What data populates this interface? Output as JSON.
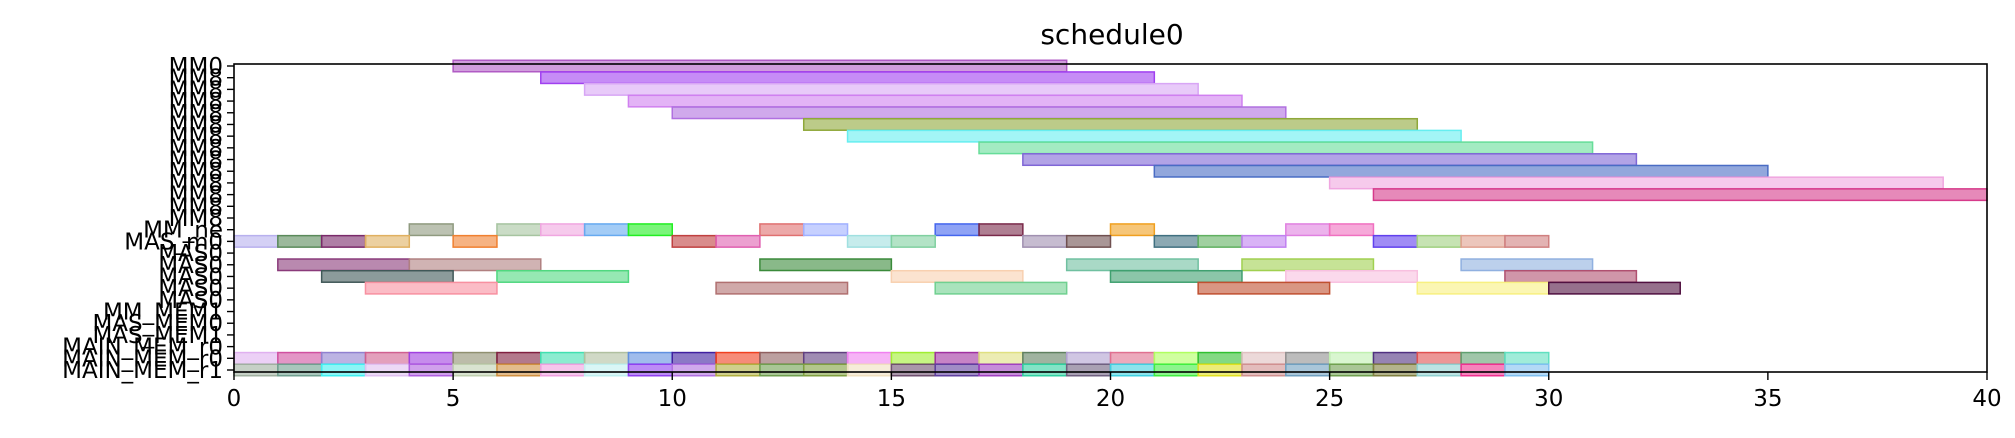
{
  "chart_data": {
    "type": "gantt",
    "title": "schedule0",
    "xlabel": "",
    "ylabel": "",
    "xlim": [
      0,
      40
    ],
    "x_ticks": [
      "0",
      "5",
      "10",
      "15",
      "20",
      "25",
      "30",
      "35",
      "40"
    ],
    "y_labels": [
      "MM0",
      "MM8",
      "MM8",
      "MM8",
      "MM8",
      "MM8",
      "MM8",
      "MM8",
      "MM8",
      "MM8",
      "MM8",
      "MM8",
      "MM8",
      "MM8",
      "MM_ne",
      "MAS_m0",
      "MAS0",
      "MAS0",
      "MAS0",
      "MAS0",
      "MAS0",
      "MM_MEM1",
      "MAS_MEM0",
      "MAS_MEM1",
      "MAIN_MEM_r0",
      "MAIN_MEM_r0",
      "MAIN_MEM_r1"
    ],
    "rows": [
      {
        "label": "MM0",
        "tasks": [
          {
            "start": 5,
            "end": 19,
            "color": "#b05bc4"
          }
        ]
      },
      {
        "label": "MM8",
        "tasks": [
          {
            "start": 7,
            "end": 21,
            "color": "#a040f0"
          }
        ]
      },
      {
        "label": "MM8",
        "tasks": [
          {
            "start": 8,
            "end": 22,
            "color": "#d8a6f5"
          }
        ]
      },
      {
        "label": "MM8",
        "tasks": [
          {
            "start": 9,
            "end": 23,
            "color": "#d080f0"
          }
        ]
      },
      {
        "label": "MM8",
        "tasks": [
          {
            "start": 10,
            "end": 24,
            "color": "#b070e0"
          }
        ]
      },
      {
        "label": "MM8",
        "tasks": [
          {
            "start": 13,
            "end": 27,
            "color": "#8fa83a"
          }
        ]
      },
      {
        "label": "MM8",
        "tasks": [
          {
            "start": 14,
            "end": 28,
            "color": "#66eef0"
          }
        ]
      },
      {
        "label": "MM8",
        "tasks": [
          {
            "start": 17,
            "end": 31,
            "color": "#66dd99"
          }
        ]
      },
      {
        "label": "MM8",
        "tasks": [
          {
            "start": 18,
            "end": 32,
            "color": "#7f66d6"
          }
        ]
      },
      {
        "label": "MM8",
        "tasks": [
          {
            "start": 21,
            "end": 35,
            "color": "#4a6cc4"
          }
        ]
      },
      {
        "label": "MM8",
        "tasks": [
          {
            "start": 25,
            "end": 39,
            "color": "#f0a6e0"
          }
        ]
      },
      {
        "label": "MM8",
        "tasks": [
          {
            "start": 26,
            "end": 40,
            "color": "#d63a8a"
          }
        ]
      },
      {
        "label": "MM8",
        "tasks": []
      },
      {
        "label": "MM8",
        "tasks": []
      },
      {
        "label": "MM_ne",
        "tasks": [
          {
            "start": 4,
            "end": 5,
            "color": "#8f9a7f"
          },
          {
            "start": 6,
            "end": 7,
            "color": "#a6c4a0"
          },
          {
            "start": 7,
            "end": 8,
            "color": "#f0a6e0"
          },
          {
            "start": 8,
            "end": 9,
            "color": "#66aaf0"
          },
          {
            "start": 9,
            "end": 10,
            "color": "#22ee22"
          },
          {
            "start": 12,
            "end": 13,
            "color": "#e07070"
          },
          {
            "start": 13,
            "end": 14,
            "color": "#a0b0ff"
          },
          {
            "start": 16,
            "end": 17,
            "color": "#4466ee"
          },
          {
            "start": 17,
            "end": 18,
            "color": "#7a2a4a"
          },
          {
            "start": 20,
            "end": 21,
            "color": "#f0a020"
          },
          {
            "start": 24,
            "end": 25,
            "color": "#e080e0"
          },
          {
            "start": 25,
            "end": 26,
            "color": "#f070c0"
          }
        ]
      },
      {
        "label": "MAS_m0",
        "tasks": [
          {
            "start": 0,
            "end": 1,
            "color": "#b8b0ee"
          },
          {
            "start": 1,
            "end": 2,
            "color": "#5a8a5a"
          },
          {
            "start": 2,
            "end": 3,
            "color": "#7a2a6a"
          },
          {
            "start": 3,
            "end": 4,
            "color": "#e0b060"
          },
          {
            "start": 5,
            "end": 6,
            "color": "#f08030"
          },
          {
            "start": 10,
            "end": 11,
            "color": "#c04040"
          },
          {
            "start": 11,
            "end": 12,
            "color": "#e060b0"
          },
          {
            "start": 14,
            "end": 15,
            "color": "#a0e0e0"
          },
          {
            "start": 15,
            "end": 16,
            "color": "#80d0a0"
          },
          {
            "start": 18,
            "end": 19,
            "color": "#a090b0"
          },
          {
            "start": 19,
            "end": 20,
            "color": "#705050"
          },
          {
            "start": 21,
            "end": 22,
            "color": "#407080"
          },
          {
            "start": 22,
            "end": 23,
            "color": "#60b060"
          },
          {
            "start": 23,
            "end": 24,
            "color": "#c080f0"
          },
          {
            "start": 26,
            "end": 27,
            "color": "#6040ee"
          },
          {
            "start": 27,
            "end": 28,
            "color": "#a0d080"
          },
          {
            "start": 28,
            "end": 29,
            "color": "#e0a090"
          },
          {
            "start": 29,
            "end": 30,
            "color": "#d08080"
          }
        ]
      },
      {
        "label": "MAS0",
        "tasks": []
      },
      {
        "label": "MAS0",
        "tasks": [
          {
            "start": 1,
            "end": 4,
            "color": "#8a3a7a"
          },
          {
            "start": 4,
            "end": 7,
            "color": "#b08080"
          },
          {
            "start": 12,
            "end": 15,
            "color": "#3a8a3a"
          },
          {
            "start": 19,
            "end": 22,
            "color": "#70c0a0"
          },
          {
            "start": 23,
            "end": 26,
            "color": "#a0d050"
          },
          {
            "start": 28,
            "end": 31,
            "color": "#90b0e0"
          }
        ]
      },
      {
        "label": "MAS0",
        "tasks": [
          {
            "start": 2,
            "end": 5,
            "color": "#405858"
          },
          {
            "start": 6,
            "end": 9,
            "color": "#50d880"
          },
          {
            "start": 15,
            "end": 18,
            "color": "#f8d0b0"
          },
          {
            "start": 20,
            "end": 23,
            "color": "#40a070"
          },
          {
            "start": 24,
            "end": 27,
            "color": "#f8c0e0"
          },
          {
            "start": 29,
            "end": 32,
            "color": "#b05070"
          }
        ]
      },
      {
        "label": "MAS0",
        "tasks": [
          {
            "start": 3,
            "end": 6,
            "color": "#f890a0"
          },
          {
            "start": 11,
            "end": 14,
            "color": "#b07070"
          },
          {
            "start": 16,
            "end": 19,
            "color": "#70d090"
          },
          {
            "start": 22,
            "end": 25,
            "color": "#c05030"
          },
          {
            "start": 27,
            "end": 30,
            "color": "#f8f080"
          },
          {
            "start": 30,
            "end": 33,
            "color": "#501040"
          }
        ]
      },
      {
        "label": "MAS0",
        "tasks": []
      },
      {
        "label": "MM_MEM1",
        "tasks": []
      },
      {
        "label": "MAS_MEM0",
        "tasks": []
      },
      {
        "label": "MAS_MEM1",
        "tasks": []
      },
      {
        "label": "MAIN_MEM_r0",
        "tasks": []
      },
      {
        "label": "MAIN_MEM_r0",
        "tasks": [
          {
            "start": 0,
            "end": 1,
            "color": "#e0b0f0"
          },
          {
            "start": 1,
            "end": 2,
            "color": "#d050a0"
          },
          {
            "start": 2,
            "end": 3,
            "color": "#9080d0"
          },
          {
            "start": 3,
            "end": 4,
            "color": "#d06090"
          },
          {
            "start": 4,
            "end": 5,
            "color": "#a040e0"
          },
          {
            "start": 5,
            "end": 6,
            "color": "#909070"
          },
          {
            "start": 6,
            "end": 7,
            "color": "#802040"
          },
          {
            "start": 7,
            "end": 8,
            "color": "#40e0b0"
          },
          {
            "start": 8,
            "end": 9,
            "color": "#b0c0a0"
          },
          {
            "start": 9,
            "end": 10,
            "color": "#6090e0"
          },
          {
            "start": 10,
            "end": 11,
            "color": "#4020a0"
          },
          {
            "start": 11,
            "end": 12,
            "color": "#f04020"
          },
          {
            "start": 12,
            "end": 13,
            "color": "#906060"
          },
          {
            "start": 13,
            "end": 14,
            "color": "#604080"
          },
          {
            "start": 14,
            "end": 15,
            "color": "#f080f0"
          },
          {
            "start": 15,
            "end": 16,
            "color": "#a0ee30"
          },
          {
            "start": 16,
            "end": 17,
            "color": "#a030a0"
          },
          {
            "start": 17,
            "end": 18,
            "color": "#e0e080"
          },
          {
            "start": 18,
            "end": 19,
            "color": "#608060"
          },
          {
            "start": 19,
            "end": 20,
            "color": "#b0a0d0"
          },
          {
            "start": 20,
            "end": 21,
            "color": "#e07090"
          },
          {
            "start": 21,
            "end": 22,
            "color": "#b0ff60"
          },
          {
            "start": 22,
            "end": 23,
            "color": "#30c030"
          },
          {
            "start": 23,
            "end": 24,
            "color": "#e0c0c0"
          },
          {
            "start": 24,
            "end": 25,
            "color": "#909090"
          },
          {
            "start": 25,
            "end": 26,
            "color": "#c0f0b0"
          },
          {
            "start": 26,
            "end": 27,
            "color": "#503080"
          },
          {
            "start": 27,
            "end": 28,
            "color": "#e05050"
          },
          {
            "start": 28,
            "end": 29,
            "color": "#60a070"
          },
          {
            "start": 29,
            "end": 30,
            "color": "#60e0c0"
          }
        ]
      },
      {
        "label": "MAIN_MEM_r1",
        "tasks": [
          {
            "start": 0,
            "end": 1,
            "color": "#a0b0a0"
          },
          {
            "start": 1,
            "end": 2,
            "color": "#70a090"
          },
          {
            "start": 2,
            "end": 3,
            "color": "#40f0f0"
          },
          {
            "start": 3,
            "end": 4,
            "color": "#e0c0f0"
          },
          {
            "start": 4,
            "end": 5,
            "color": "#b060e0"
          },
          {
            "start": 5,
            "end": 6,
            "color": "#c0d0b0"
          },
          {
            "start": 6,
            "end": 7,
            "color": "#d09040"
          },
          {
            "start": 7,
            "end": 8,
            "color": "#f0a0e0"
          },
          {
            "start": 8,
            "end": 9,
            "color": "#c0f0f0"
          },
          {
            "start": 9,
            "end": 10,
            "color": "#9040f0"
          },
          {
            "start": 10,
            "end": 11,
            "color": "#b070e0"
          },
          {
            "start": 11,
            "end": 12,
            "color": "#b0b040"
          },
          {
            "start": 12,
            "end": 13,
            "color": "#70a050"
          },
          {
            "start": 13,
            "end": 14,
            "color": "#80a040"
          },
          {
            "start": 14,
            "end": 15,
            "color": "#f0e0c0"
          },
          {
            "start": 15,
            "end": 16,
            "color": "#705070"
          },
          {
            "start": 16,
            "end": 17,
            "color": "#6040a0"
          },
          {
            "start": 17,
            "end": 18,
            "color": "#a040c0"
          },
          {
            "start": 18,
            "end": 19,
            "color": "#30d0a0"
          },
          {
            "start": 19,
            "end": 20,
            "color": "#706080"
          },
          {
            "start": 20,
            "end": 21,
            "color": "#40d0e0"
          },
          {
            "start": 21,
            "end": 22,
            "color": "#40ee40"
          },
          {
            "start": 22,
            "end": 23,
            "color": "#e0e020"
          },
          {
            "start": 23,
            "end": 24,
            "color": "#d09090"
          },
          {
            "start": 24,
            "end": 25,
            "color": "#70a0c0"
          },
          {
            "start": 25,
            "end": 26,
            "color": "#70a050"
          },
          {
            "start": 26,
            "end": 27,
            "color": "#808040"
          },
          {
            "start": 27,
            "end": 28,
            "color": "#90d0d0"
          },
          {
            "start": 28,
            "end": 29,
            "color": "#f03090"
          },
          {
            "start": 29,
            "end": 30,
            "color": "#80c0f0"
          }
        ]
      }
    ]
  }
}
